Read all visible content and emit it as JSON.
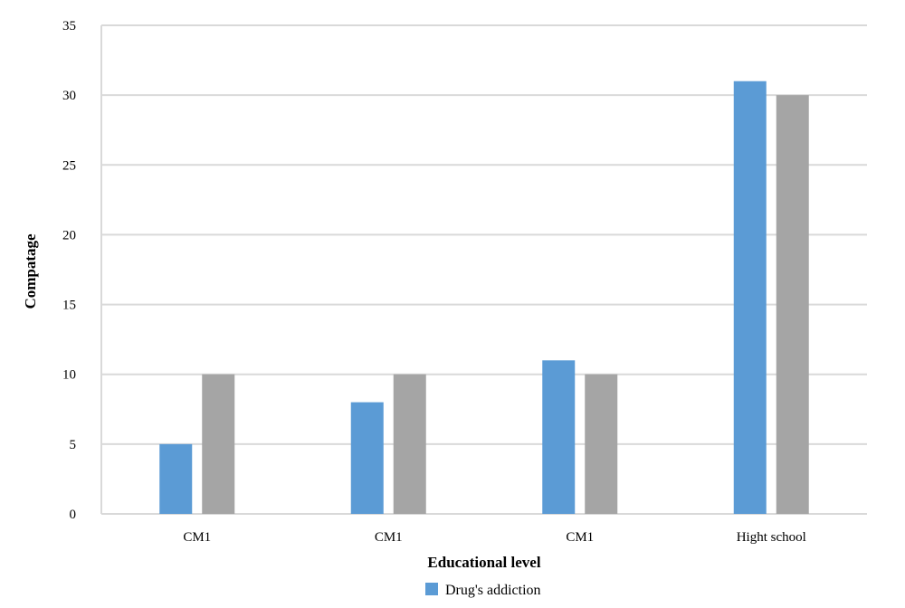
{
  "chart_data": {
    "type": "bar",
    "categories": [
      "CM1",
      "CM1",
      "CM1",
      "Hight school"
    ],
    "series": [
      {
        "name": "Drug's addiction",
        "values": [
          5,
          8,
          11,
          31
        ],
        "color": "#5b9bd5"
      },
      {
        "values": [
          10,
          10,
          10,
          30
        ],
        "color": "#a5a5a5"
      }
    ],
    "title": "",
    "xlabel": "Educational level",
    "ylabel": "Compatage",
    "ylim": [
      0,
      35
    ],
    "yticks": [
      "0",
      "5",
      "10",
      "15",
      "20",
      "25",
      "30",
      "35"
    ],
    "grid": true,
    "legend_position": "bottom"
  }
}
